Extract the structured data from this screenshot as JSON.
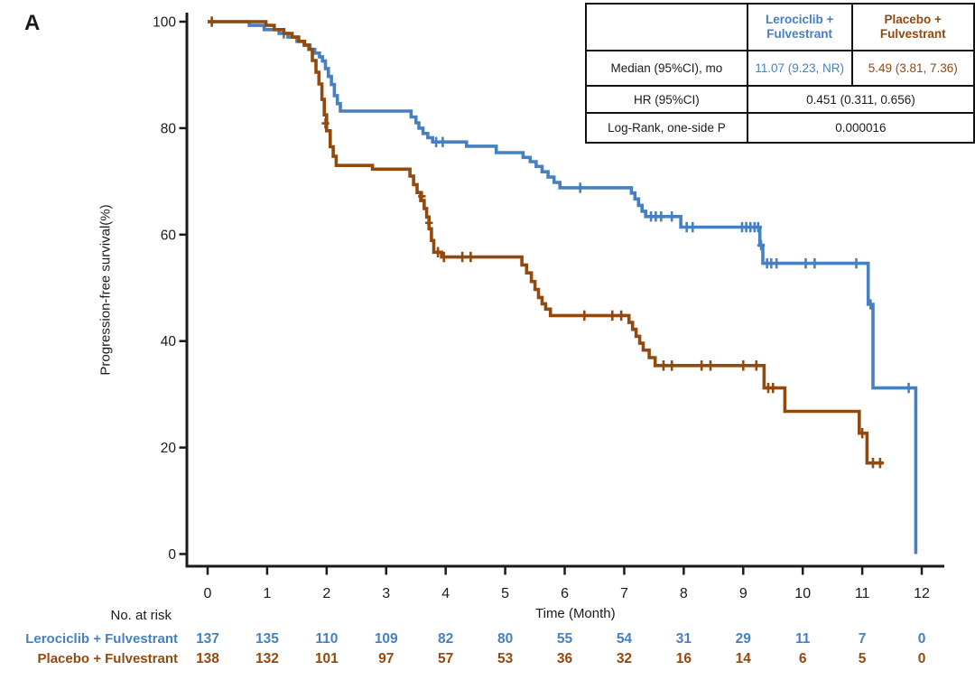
{
  "panel_label": "A",
  "colors": {
    "lerociclib_blue": "#4780c0",
    "placebo_brown": "#92490e",
    "axis_black": "#1a1a1a"
  },
  "stats_table": {
    "corner": "",
    "col_headers": {
      "lerociclib": "Lerociclib + Fulvestrant",
      "placebo": "Placebo + Fulvestrant"
    },
    "median_row": {
      "label": "Median (95%CI), mo",
      "lerociclib": "11.07 (9.23, NR)",
      "placebo": "5.49 (3.81, 7.36)"
    },
    "hr_row": {
      "label": "HR (95%CI)",
      "value": "0.451 (0.311, 0.656)"
    },
    "logrank_row": {
      "label": "Log-Rank, one-side P",
      "value": "0.000016"
    }
  },
  "chart_data": {
    "type": "line",
    "subtype": "kaplan-meier-step",
    "title": "",
    "xlabel": "Time (Month)",
    "ylabel": "Progression-free survival(%)",
    "xlim": [
      0,
      12.4
    ],
    "ylim": [
      0,
      100
    ],
    "xticks": [
      0,
      1,
      2,
      3,
      4,
      5,
      6,
      7,
      8,
      9,
      10,
      11,
      12
    ],
    "yticks": [
      0,
      20,
      40,
      60,
      80,
      100
    ],
    "grid": false,
    "legend_position": "table-top-right",
    "series": [
      {
        "name": "Lerociclib + Fulvestrant",
        "color_key": "lerociclib_blue",
        "steps": [
          [
            0,
            100
          ],
          [
            0.7,
            100
          ],
          [
            0.7,
            99.3
          ],
          [
            0.95,
            99.3
          ],
          [
            0.95,
            98.5
          ],
          [
            1.2,
            98.5
          ],
          [
            1.2,
            97.8
          ],
          [
            1.35,
            97.8
          ],
          [
            1.35,
            97.1
          ],
          [
            1.5,
            97.1
          ],
          [
            1.5,
            96.3
          ],
          [
            1.62,
            96.3
          ],
          [
            1.62,
            95.6
          ],
          [
            1.72,
            95.6
          ],
          [
            1.72,
            94.8
          ],
          [
            1.8,
            94.8
          ],
          [
            1.8,
            94.1
          ],
          [
            1.88,
            94.1
          ],
          [
            1.88,
            93.4
          ],
          [
            1.93,
            93.4
          ],
          [
            1.93,
            92.6
          ],
          [
            1.98,
            92.6
          ],
          [
            1.98,
            91.2
          ],
          [
            2.03,
            91.2
          ],
          [
            2.03,
            89.7
          ],
          [
            2.08,
            89.7
          ],
          [
            2.08,
            88.2
          ],
          [
            2.13,
            88.2
          ],
          [
            2.13,
            86.1
          ],
          [
            2.18,
            86.1
          ],
          [
            2.18,
            84.6
          ],
          [
            2.23,
            84.6
          ],
          [
            2.23,
            83.2
          ],
          [
            3.42,
            83.2
          ],
          [
            3.42,
            82.1
          ],
          [
            3.5,
            82.1
          ],
          [
            3.5,
            81
          ],
          [
            3.55,
            81
          ],
          [
            3.55,
            80
          ],
          [
            3.62,
            80
          ],
          [
            3.62,
            79
          ],
          [
            3.7,
            79
          ],
          [
            3.7,
            78.2
          ],
          [
            3.78,
            78.2
          ],
          [
            3.78,
            77.4
          ],
          [
            4.35,
            77.4
          ],
          [
            4.35,
            76.6
          ],
          [
            4.85,
            76.6
          ],
          [
            4.85,
            75.4
          ],
          [
            5.3,
            75.4
          ],
          [
            5.3,
            74.5
          ],
          [
            5.42,
            74.5
          ],
          [
            5.42,
            73.7
          ],
          [
            5.52,
            73.7
          ],
          [
            5.52,
            72.8
          ],
          [
            5.62,
            72.8
          ],
          [
            5.62,
            71.8
          ],
          [
            5.72,
            71.8
          ],
          [
            5.72,
            70.8
          ],
          [
            5.82,
            70.8
          ],
          [
            5.82,
            69.8
          ],
          [
            5.92,
            69.8
          ],
          [
            5.92,
            68.8
          ],
          [
            7.12,
            68.8
          ],
          [
            7.12,
            67.8
          ],
          [
            7.18,
            67.8
          ],
          [
            7.18,
            66.7
          ],
          [
            7.24,
            66.7
          ],
          [
            7.24,
            65.5
          ],
          [
            7.3,
            65.5
          ],
          [
            7.3,
            64.4
          ],
          [
            7.36,
            64.4
          ],
          [
            7.36,
            63.4
          ],
          [
            7.95,
            63.4
          ],
          [
            7.95,
            61.4
          ],
          [
            9.28,
            61.4
          ],
          [
            9.28,
            58
          ],
          [
            9.33,
            58
          ],
          [
            9.33,
            54.6
          ],
          [
            11.1,
            54.6
          ],
          [
            11.1,
            46.9
          ],
          [
            11.18,
            46.9
          ],
          [
            11.18,
            31.2
          ],
          [
            11.9,
            31.2
          ],
          [
            11.9,
            0
          ]
        ],
        "censors": [
          [
            1.28,
            97.8
          ],
          [
            3.84,
            77.4
          ],
          [
            3.95,
            77.4
          ],
          [
            6.26,
            68.8
          ],
          [
            7.45,
            63.4
          ],
          [
            7.53,
            63.4
          ],
          [
            7.62,
            63.4
          ],
          [
            7.8,
            63.4
          ],
          [
            8.05,
            61.4
          ],
          [
            8.15,
            61.4
          ],
          [
            8.98,
            61.4
          ],
          [
            9.05,
            61.4
          ],
          [
            9.12,
            61.4
          ],
          [
            9.19,
            61.4
          ],
          [
            9.25,
            61.4
          ],
          [
            9.3,
            58
          ],
          [
            9.4,
            54.6
          ],
          [
            9.47,
            54.6
          ],
          [
            9.56,
            54.6
          ],
          [
            10.05,
            54.6
          ],
          [
            10.2,
            54.6
          ],
          [
            10.9,
            54.6
          ],
          [
            11.14,
            46.9
          ],
          [
            11.78,
            31.2
          ]
        ]
      },
      {
        "name": "Placebo + Fulvestrant",
        "color_key": "placebo_brown",
        "steps": [
          [
            0,
            100
          ],
          [
            0.98,
            100
          ],
          [
            0.98,
            99.3
          ],
          [
            1.12,
            99.3
          ],
          [
            1.12,
            98.5
          ],
          [
            1.28,
            98.5
          ],
          [
            1.28,
            97.8
          ],
          [
            1.42,
            97.8
          ],
          [
            1.42,
            97.1
          ],
          [
            1.53,
            97.1
          ],
          [
            1.53,
            96.3
          ],
          [
            1.63,
            96.3
          ],
          [
            1.63,
            95.6
          ],
          [
            1.7,
            95.6
          ],
          [
            1.7,
            94.8
          ],
          [
            1.76,
            94.8
          ],
          [
            1.76,
            92.7
          ],
          [
            1.82,
            92.7
          ],
          [
            1.82,
            90.5
          ],
          [
            1.87,
            90.5
          ],
          [
            1.87,
            88.3
          ],
          [
            1.92,
            88.3
          ],
          [
            1.92,
            85.4
          ],
          [
            1.96,
            85.4
          ],
          [
            1.96,
            82.5
          ],
          [
            2,
            82.5
          ],
          [
            2,
            79.5
          ],
          [
            2.06,
            79.5
          ],
          [
            2.06,
            76.5
          ],
          [
            2.11,
            76.5
          ],
          [
            2.11,
            74.7
          ],
          [
            2.16,
            74.7
          ],
          [
            2.16,
            73
          ],
          [
            2.77,
            73
          ],
          [
            2.77,
            72.3
          ],
          [
            3.4,
            72.3
          ],
          [
            3.4,
            71
          ],
          [
            3.46,
            71
          ],
          [
            3.46,
            69.4
          ],
          [
            3.52,
            69.4
          ],
          [
            3.52,
            67.9
          ],
          [
            3.58,
            67.9
          ],
          [
            3.58,
            66.4
          ],
          [
            3.64,
            66.4
          ],
          [
            3.64,
            64.9
          ],
          [
            3.68,
            64.9
          ],
          [
            3.68,
            63.3
          ],
          [
            3.72,
            63.3
          ],
          [
            3.72,
            61.1
          ],
          [
            3.76,
            61.1
          ],
          [
            3.76,
            58.9
          ],
          [
            3.8,
            58.9
          ],
          [
            3.8,
            56.7
          ],
          [
            3.93,
            56.7
          ],
          [
            3.93,
            55.8
          ],
          [
            5.28,
            55.8
          ],
          [
            5.28,
            54.3
          ],
          [
            5.36,
            54.3
          ],
          [
            5.36,
            52.8
          ],
          [
            5.44,
            52.8
          ],
          [
            5.44,
            51.2
          ],
          [
            5.5,
            51.2
          ],
          [
            5.5,
            49.7
          ],
          [
            5.56,
            49.7
          ],
          [
            5.56,
            48.2
          ],
          [
            5.62,
            48.2
          ],
          [
            5.62,
            47
          ],
          [
            5.68,
            47
          ],
          [
            5.68,
            46
          ],
          [
            5.76,
            46
          ],
          [
            5.76,
            44.8
          ],
          [
            7.08,
            44.8
          ],
          [
            7.08,
            43.5
          ],
          [
            7.14,
            43.5
          ],
          [
            7.14,
            42.2
          ],
          [
            7.2,
            42.2
          ],
          [
            7.2,
            40.9
          ],
          [
            7.26,
            40.9
          ],
          [
            7.26,
            39.6
          ],
          [
            7.32,
            39.6
          ],
          [
            7.32,
            38.3
          ],
          [
            7.42,
            38.3
          ],
          [
            7.42,
            36.9
          ],
          [
            7.52,
            36.9
          ],
          [
            7.52,
            35.4
          ],
          [
            9.35,
            35.4
          ],
          [
            9.35,
            31.2
          ],
          [
            9.7,
            31.2
          ],
          [
            9.7,
            26.8
          ],
          [
            10.95,
            26.8
          ],
          [
            10.95,
            22.7
          ],
          [
            11.08,
            22.7
          ],
          [
            11.08,
            17.1
          ],
          [
            11.35,
            17.1
          ]
        ],
        "censors": [
          [
            0.07,
            100
          ],
          [
            1.98,
            80.9
          ],
          [
            3.6,
            67.2
          ],
          [
            3.72,
            62.2
          ],
          [
            3.87,
            56.7
          ],
          [
            3.97,
            55.8
          ],
          [
            4.28,
            55.8
          ],
          [
            4.42,
            55.8
          ],
          [
            6.33,
            44.8
          ],
          [
            6.8,
            44.8
          ],
          [
            6.95,
            44.8
          ],
          [
            7.66,
            35.4
          ],
          [
            7.8,
            35.4
          ],
          [
            8.3,
            35.4
          ],
          [
            8.45,
            35.4
          ],
          [
            9,
            35.4
          ],
          [
            9.22,
            35.4
          ],
          [
            9.42,
            31.2
          ],
          [
            9.5,
            31.2
          ],
          [
            11,
            22.7
          ],
          [
            11.18,
            17.1
          ],
          [
            11.3,
            17.1
          ]
        ]
      }
    ]
  },
  "risk_table": {
    "title": "No. at risk",
    "months": [
      0,
      1,
      2,
      3,
      4,
      5,
      6,
      7,
      8,
      9,
      10,
      11,
      12
    ],
    "rows": [
      {
        "label": "Lerociclib + Fulvestrant",
        "color_key": "lerociclib_blue",
        "values": [
          137,
          135,
          110,
          109,
          82,
          80,
          55,
          54,
          31,
          29,
          11,
          7,
          0
        ]
      },
      {
        "label": "Placebo + Fulvestrant",
        "color_key": "placebo_brown",
        "values": [
          138,
          132,
          101,
          97,
          57,
          53,
          36,
          32,
          16,
          14,
          6,
          5,
          0
        ]
      }
    ]
  }
}
